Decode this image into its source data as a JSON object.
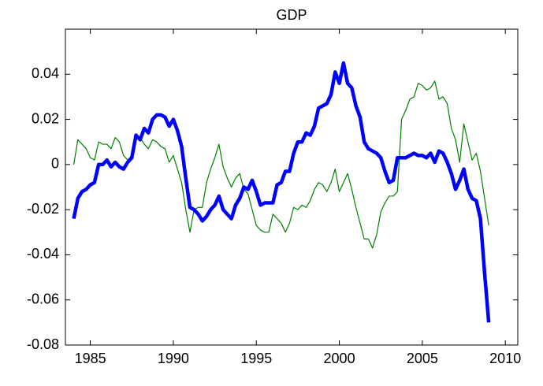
{
  "chart_data": {
    "type": "line",
    "title": "GDP",
    "x": [
      1984,
      1984.25,
      1984.5,
      1984.75,
      1985,
      1985.25,
      1985.5,
      1985.75,
      1986,
      1986.25,
      1986.5,
      1986.75,
      1987,
      1987.25,
      1987.5,
      1987.75,
      1988,
      1988.25,
      1988.5,
      1988.75,
      1989,
      1989.25,
      1989.5,
      1989.75,
      1990,
      1990.25,
      1990.5,
      1990.75,
      1991,
      1991.25,
      1991.5,
      1991.75,
      1992,
      1992.25,
      1992.5,
      1992.75,
      1993,
      1993.25,
      1993.5,
      1993.75,
      1994,
      1994.25,
      1994.5,
      1994.75,
      1995,
      1995.25,
      1995.5,
      1995.75,
      1996,
      1996.25,
      1996.5,
      1996.75,
      1997,
      1997.25,
      1997.5,
      1997.75,
      1998,
      1998.25,
      1998.5,
      1998.75,
      1999,
      1999.25,
      1999.5,
      1999.75,
      2000,
      2000.25,
      2000.5,
      2000.75,
      2001,
      2001.25,
      2001.5,
      2001.75,
      2002,
      2002.25,
      2002.5,
      2002.75,
      2003,
      2003.25,
      2003.5,
      2003.75,
      2004,
      2004.25,
      2004.5,
      2004.75,
      2005,
      2005.25,
      2005.5,
      2005.75,
      2006,
      2006.25,
      2006.5,
      2006.75,
      2007,
      2007.25,
      2007.5,
      2007.75,
      2008,
      2008.25,
      2008.5,
      2008.75,
      2009
    ],
    "series": [
      {
        "color": "#0000ff",
        "values": [
          -0.024,
          -0.015,
          -0.012,
          -0.011,
          -0.009,
          -0.008,
          0.0,
          0.0,
          0.002,
          -0.001,
          0.001,
          -0.001,
          -0.002,
          0.001,
          0.003,
          0.013,
          0.011,
          0.016,
          0.014,
          0.02,
          0.022,
          0.022,
          0.021,
          0.017,
          0.02,
          0.015,
          0.008,
          -0.006,
          -0.019,
          -0.02,
          -0.022,
          -0.025,
          -0.023,
          -0.02,
          -0.018,
          -0.014,
          -0.02,
          -0.022,
          -0.024,
          -0.018,
          -0.015,
          -0.01,
          -0.011,
          -0.007,
          -0.012,
          -0.018,
          -0.017,
          -0.017,
          -0.017,
          -0.009,
          -0.008,
          -0.003,
          -0.003,
          0.005,
          0.01,
          0.01,
          0.014,
          0.013,
          0.017,
          0.025,
          0.026,
          0.027,
          0.031,
          0.041,
          0.036,
          0.045,
          0.036,
          0.034,
          0.026,
          0.021,
          0.01,
          0.007,
          0.006,
          0.005,
          0.003,
          -0.003,
          -0.008,
          -0.007,
          0.003,
          0.003,
          0.003,
          0.004,
          0.005,
          0.004,
          0.004,
          0.003,
          0.005,
          0.001,
          0.006,
          0.005,
          0.001,
          -0.004,
          -0.011,
          -0.007,
          -0.002,
          -0.011,
          -0.015,
          -0.016,
          -0.024,
          -0.048,
          -0.07
        ]
      },
      {
        "color": "#008000",
        "values": [
          0.0,
          0.011,
          0.009,
          0.007,
          0.003,
          0.002,
          0.01,
          0.009,
          0.009,
          0.007,
          0.012,
          0.01,
          0.004,
          0.002,
          0.004,
          0.011,
          0.012,
          0.009,
          0.007,
          0.011,
          0.01,
          0.008,
          0.007,
          0.001,
          0.004,
          -0.002,
          -0.008,
          -0.02,
          -0.03,
          -0.02,
          -0.019,
          -0.019,
          -0.008,
          -0.002,
          0.003,
          0.009,
          -0.001,
          -0.006,
          -0.01,
          -0.006,
          -0.004,
          -0.011,
          -0.013,
          -0.02,
          -0.027,
          -0.029,
          -0.03,
          -0.03,
          -0.022,
          -0.024,
          -0.026,
          -0.03,
          -0.026,
          -0.019,
          -0.02,
          -0.018,
          -0.019,
          -0.016,
          -0.011,
          -0.008,
          -0.009,
          -0.012,
          -0.008,
          -0.002,
          -0.012,
          -0.008,
          -0.004,
          -0.011,
          -0.019,
          -0.026,
          -0.033,
          -0.033,
          -0.037,
          -0.031,
          -0.021,
          -0.017,
          -0.014,
          -0.014,
          -0.012,
          0.02,
          0.024,
          0.029,
          0.03,
          0.036,
          0.035,
          0.033,
          0.034,
          0.037,
          0.029,
          0.03,
          0.027,
          0.016,
          0.011,
          0.001,
          0.018,
          0.01,
          0.002,
          0.005,
          -0.003,
          -0.015,
          -0.027
        ]
      }
    ],
    "xlim": [
      1983.5,
      2010.75
    ],
    "xticks": [
      1985,
      1990,
      1995,
      2000,
      2005,
      2010
    ],
    "ylim": [
      -0.08,
      0.06
    ],
    "yticks": [
      -0.08,
      -0.06,
      -0.04,
      -0.02,
      0,
      0.02,
      0.04
    ]
  }
}
